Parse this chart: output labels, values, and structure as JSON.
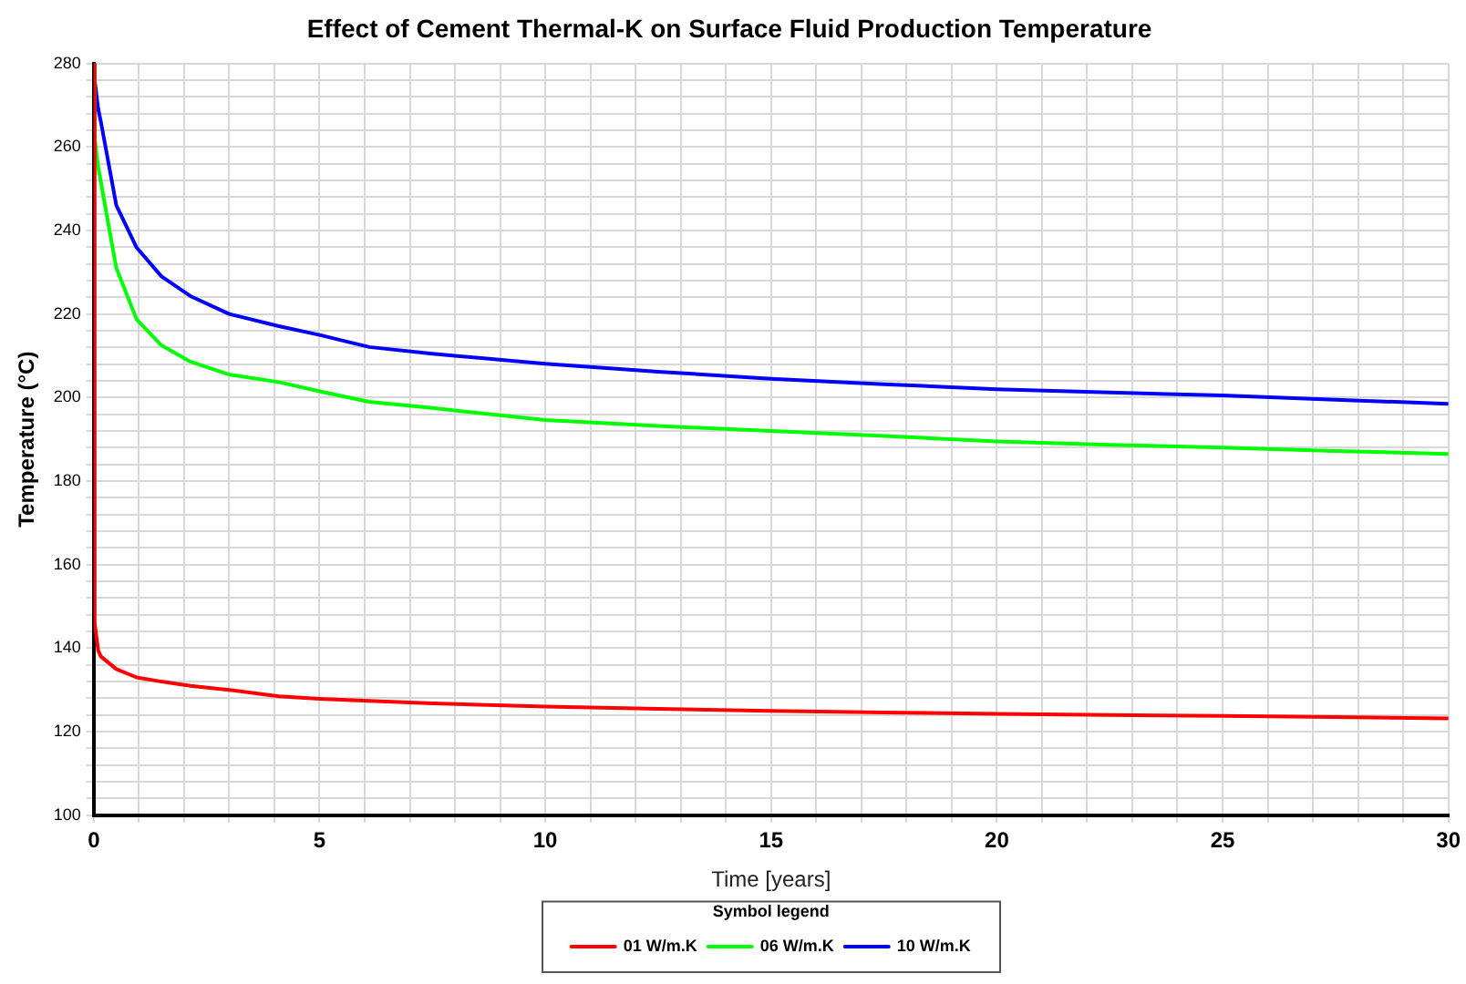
{
  "chart_data": {
    "type": "line",
    "title": "Effect of Cement Thermal-K on Surface Fluid Production Temperature",
    "xlabel": "Time [years]",
    "ylabel": "Temperature (°C)",
    "legend_title": "Symbol legend",
    "legend": "bottom",
    "grid": true,
    "marker": "none",
    "line_style": "solid",
    "xlim": [
      0,
      30
    ],
    "ylim": [
      100,
      280
    ],
    "xticks": [
      0,
      {
        "value": 1,
        "label": null
      },
      {
        "value": 2,
        "label": null
      },
      {
        "value": 3,
        "label": null
      },
      {
        "value": 4,
        "label": null
      },
      5,
      {
        "value": 6,
        "label": null
      },
      {
        "value": 7,
        "label": null
      },
      {
        "value": 8,
        "label": null
      },
      {
        "value": 9,
        "label": null
      },
      10,
      {
        "value": 11,
        "label": null
      },
      {
        "value": 12,
        "label": null
      },
      {
        "value": 13,
        "label": null
      },
      {
        "value": 14,
        "label": null
      },
      15,
      {
        "value": 16,
        "label": null
      },
      {
        "value": 17,
        "label": null
      },
      {
        "value": 18,
        "label": null
      },
      {
        "value": 19,
        "label": null
      },
      20,
      {
        "value": 21,
        "label": null
      },
      {
        "value": 22,
        "label": null
      },
      {
        "value": 23,
        "label": null
      },
      {
        "value": 24,
        "label": null
      },
      25,
      {
        "value": 26,
        "label": null
      },
      {
        "value": 27,
        "label": null
      },
      {
        "value": 28,
        "label": null
      },
      {
        "value": 29,
        "label": null
      },
      30
    ],
    "yticks": [
      100,
      {
        "value": 104,
        "label": null
      },
      {
        "value": 108,
        "label": null
      },
      {
        "value": 112,
        "label": null
      },
      {
        "value": 116,
        "label": null
      },
      120,
      {
        "value": 124,
        "label": null
      },
      {
        "value": 128,
        "label": null
      },
      {
        "value": 132,
        "label": null
      },
      {
        "value": 136,
        "label": null
      },
      140,
      {
        "value": 144,
        "label": null
      },
      {
        "value": 148,
        "label": null
      },
      {
        "value": 152,
        "label": null
      },
      {
        "value": 156,
        "label": null
      },
      160,
      {
        "value": 164,
        "label": null
      },
      {
        "value": 168,
        "label": null
      },
      {
        "value": 172,
        "label": null
      },
      {
        "value": 176,
        "label": null
      },
      180,
      {
        "value": 184,
        "label": null
      },
      {
        "value": 188,
        "label": null
      },
      {
        "value": 192,
        "label": null
      },
      {
        "value": 196,
        "label": null
      },
      200,
      {
        "value": 204,
        "label": null
      },
      {
        "value": 208,
        "label": null
      },
      {
        "value": 212,
        "label": null
      },
      {
        "value": 216,
        "label": null
      },
      220,
      {
        "value": 224,
        "label": null
      },
      {
        "value": 228,
        "label": null
      },
      {
        "value": 232,
        "label": null
      },
      {
        "value": 236,
        "label": null
      },
      240,
      {
        "value": 244,
        "label": null
      },
      {
        "value": 248,
        "label": null
      },
      {
        "value": 252,
        "label": null
      },
      {
        "value": 256,
        "label": null
      },
      260,
      {
        "value": 264,
        "label": null
      },
      {
        "value": 268,
        "label": null
      },
      {
        "value": 272,
        "label": null
      },
      {
        "value": 276,
        "label": null
      },
      280
    ],
    "x": [
      0,
      0.02,
      0.1,
      0.16,
      0.5,
      0.95,
      1.5,
      2.14,
      3,
      4.1,
      5,
      6.1,
      7.5,
      10,
      12.5,
      15,
      17.5,
      20,
      22.5,
      25,
      27.5,
      30
    ],
    "series": [
      {
        "name": "01 W/m.K",
        "color": "#ff0000",
        "values": [
          280,
          146,
          139.4,
          138,
          135,
          133,
          132,
          131,
          130,
          128.5,
          127.9,
          127.4,
          126.8,
          126,
          125.5,
          125,
          124.6,
          124.3,
          124,
          123.8,
          123.5,
          123.2
        ]
      },
      {
        "name": "06 W/m.K",
        "color": "#00ff00",
        "values": [
          280,
          262,
          255,
          251.4,
          231,
          218.7,
          212.5,
          208.6,
          205.5,
          203.7,
          201.5,
          199,
          197.5,
          194.6,
          193.2,
          192,
          190.8,
          189.5,
          188.7,
          188,
          187.2,
          186.5
        ]
      },
      {
        "name": "10 W/m.K",
        "color": "#0000ff",
        "values": [
          280,
          276,
          269,
          265.9,
          246,
          235.9,
          229,
          224.3,
          220,
          217.1,
          215,
          212.1,
          210.5,
          208.1,
          206.2,
          204.5,
          203.2,
          202,
          201.2,
          200.5,
          199.5,
          198.5
        ]
      }
    ]
  }
}
